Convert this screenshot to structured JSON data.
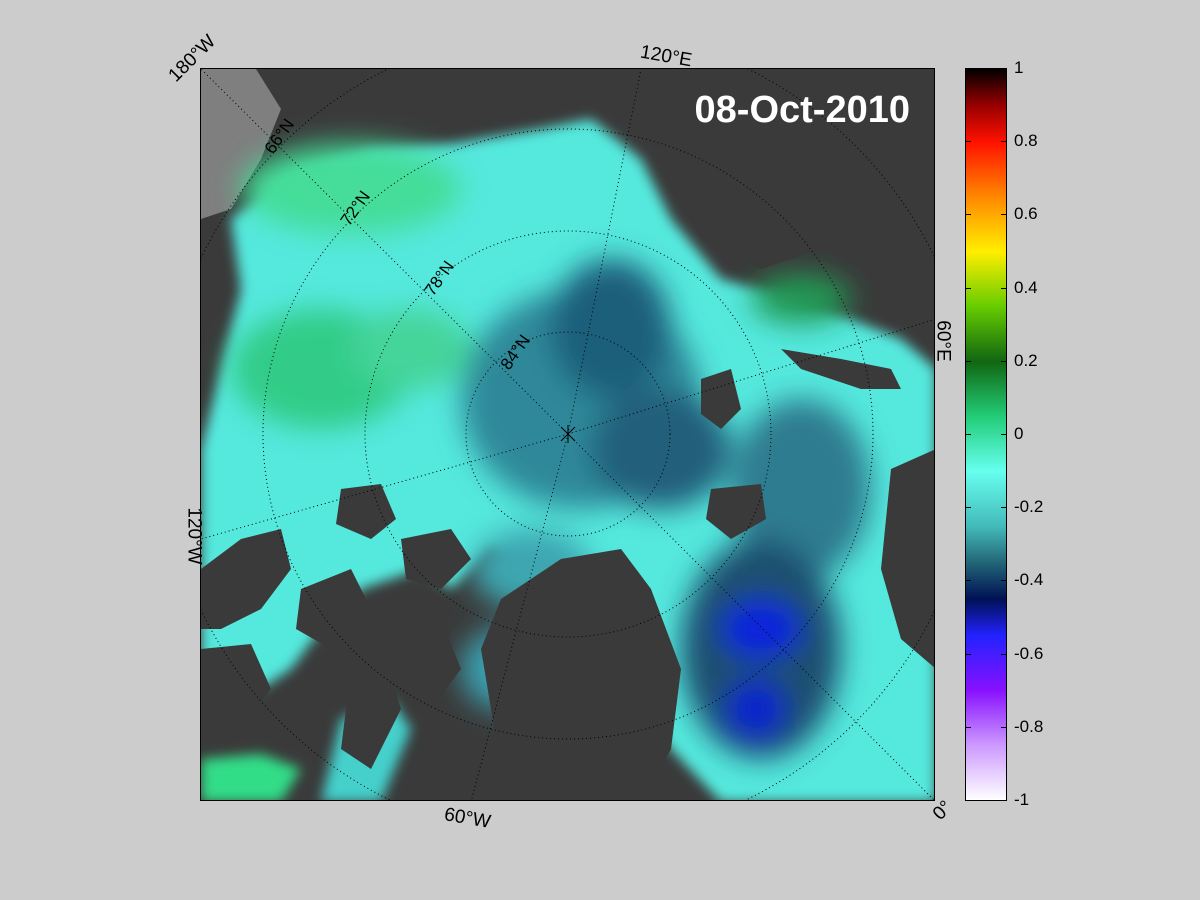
{
  "map": {
    "date": "08-Oct-2010",
    "lat_labels": [
      "66°N",
      "72°N",
      "78°N",
      "84°N"
    ],
    "lon_labels": {
      "w180": "180°W",
      "e120": "120°E",
      "e60": "60°E",
      "w120": "120°W",
      "w60": "60°W",
      "zero": "0°"
    }
  },
  "colorbar": {
    "ticks": [
      "1",
      "0.8",
      "0.6",
      "0.4",
      "0.2",
      "0",
      "-0.2",
      "-0.4",
      "-0.6",
      "-0.8",
      "-1"
    ],
    "stops": [
      {
        "value": 1,
        "color": "#000000"
      },
      {
        "value": 0.9,
        "color": "#990000"
      },
      {
        "value": 0.8,
        "color": "#ff1100"
      },
      {
        "value": 0.65,
        "color": "#ff8800"
      },
      {
        "value": 0.5,
        "color": "#ffee00"
      },
      {
        "value": 0.35,
        "color": "#66cc00"
      },
      {
        "value": 0.2,
        "color": "#116611"
      },
      {
        "value": 0.05,
        "color": "#22cc77"
      },
      {
        "value": -0.1,
        "color": "#66ffee"
      },
      {
        "value": -0.25,
        "color": "#44bbbb"
      },
      {
        "value": -0.35,
        "color": "#226677"
      },
      {
        "value": -0.45,
        "color": "#001155"
      },
      {
        "value": -0.55,
        "color": "#2222ff"
      },
      {
        "value": -0.7,
        "color": "#8811ff"
      },
      {
        "value": -0.85,
        "color": "#cc99ff"
      },
      {
        "value": -1,
        "color": "#ffffff"
      }
    ]
  },
  "colors": {
    "land": "#3a3a3a",
    "shelf": "#7a7a7a",
    "background": "#cccccc"
  }
}
